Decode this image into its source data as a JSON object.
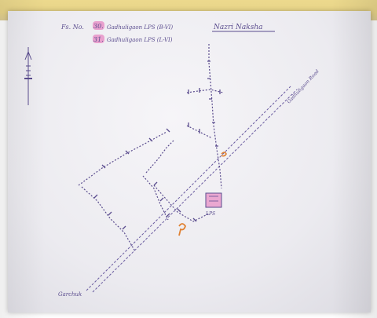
{
  "header": {
    "line1_prefix": "Fs. No.",
    "line1_number": "30.",
    "line1_text": "Gadhuligaon LPS (B-VI)",
    "line2_number": "31.",
    "line2_text": "Gadhuligaon LPS (L-VI)",
    "title": "Nazri Naksha"
  },
  "labels": {
    "road_label": "Gadhuligaon Road",
    "bottom_left_label": "Garchuk",
    "building_label": "LPS"
  },
  "colors": {
    "ink": "#5a4c8e",
    "highlight": "#e56cb5",
    "orange_mark": "#e08030",
    "paper": "#efeef3",
    "strip": "#e9d68a"
  }
}
